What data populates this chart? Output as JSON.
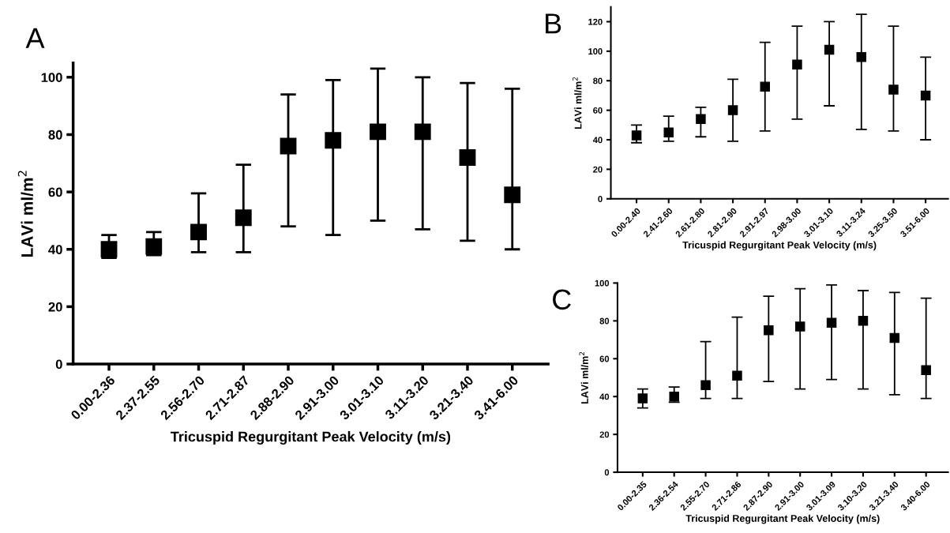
{
  "chart_data": [
    {
      "type": "scatter",
      "title": "A",
      "xlabel": "Tricuspid Regurgitant Peak Velocity (m/s)",
      "ylabel": "LAVi ml/m$^{2}$",
      "categories": [
        "0.00-2.36",
        "2.37-2.55",
        "2.56-2.70",
        "2.71-2.87",
        "2.88-2.90",
        "2.91-3.00",
        "3.01-3.10",
        "3.11-3.20",
        "3.21-3.40",
        "3.41-6.00"
      ],
      "series": [
        {
          "color": "#000000",
          "values": [
            40,
            41,
            46,
            51,
            76,
            78,
            81,
            81,
            72,
            59
          ],
          "errors": [
            [
              37,
              45
            ],
            [
              38,
              46
            ],
            [
              39,
              59.5
            ],
            [
              39,
              69.5
            ],
            [
              48,
              94
            ],
            [
              45,
              99
            ],
            [
              50,
              103
            ],
            [
              47,
              100
            ],
            [
              43,
              98
            ],
            [
              40,
              96
            ]
          ]
        }
      ],
      "ylim": [
        0,
        105
      ],
      "yticks": [
        0,
        20,
        40,
        60,
        80,
        100
      ],
      "marker": "square",
      "grid": false,
      "legend": false
    },
    {
      "type": "scatter",
      "title": "B",
      "xlabel": "Tricuspid Regurgitant Peak Velocity (m/s)",
      "ylabel": "LAVi ml/m$^{2}$",
      "categories": [
        "0.00-2.40",
        "2.41-2.60",
        "2.61-2.80",
        "2.81-2.90",
        "2.91-2.97",
        "2.98-3.00",
        "3.01-3.10",
        "3.11-3.24",
        "3.25-3.50",
        "3.51-6.00"
      ],
      "series": [
        {
          "color": "#000000",
          "values": [
            43,
            45,
            54,
            60,
            76,
            91,
            101,
            96,
            74,
            70
          ],
          "errors": [
            [
              38,
              50
            ],
            [
              39,
              56
            ],
            [
              42,
              62
            ],
            [
              39,
              81
            ],
            [
              46,
              106
            ],
            [
              54,
              117
            ],
            [
              63,
              120
            ],
            [
              47,
              125
            ],
            [
              46,
              117
            ],
            [
              40,
              96
            ]
          ]
        }
      ],
      "ylim": [
        0,
        130
      ],
      "yticks": [
        0,
        20,
        40,
        60,
        80,
        100,
        120
      ],
      "marker": "square",
      "grid": false,
      "legend": false
    },
    {
      "type": "scatter",
      "title": "C",
      "xlabel": "Tricuspid Regurgitant Peak Velocity (m/s)",
      "ylabel": "LAVi ml/m$^{2}$",
      "categories": [
        "0.00-2.35",
        "2.36-2.54",
        "2.55-2.70",
        "2.71-2.86",
        "2.87-2.90",
        "2.91-3.00",
        "3.01-3.09",
        "3.10-3.20",
        "3.21-3.40",
        "3.40-6.00"
      ],
      "series": [
        {
          "color": "#000000",
          "values": [
            39,
            40,
            46,
            51,
            75,
            77,
            79,
            80,
            71,
            54
          ],
          "errors": [
            [
              34,
              44
            ],
            [
              37,
              45
            ],
            [
              39,
              69
            ],
            [
              39,
              82
            ],
            [
              48,
              93
            ],
            [
              44,
              97
            ],
            [
              49,
              99
            ],
            [
              44,
              96
            ],
            [
              41,
              95
            ],
            [
              39,
              92
            ]
          ]
        }
      ],
      "ylim": [
        0,
        100
      ],
      "yticks": [
        0,
        20,
        40,
        60,
        80,
        100
      ],
      "marker": "square",
      "grid": false,
      "legend": false
    }
  ]
}
